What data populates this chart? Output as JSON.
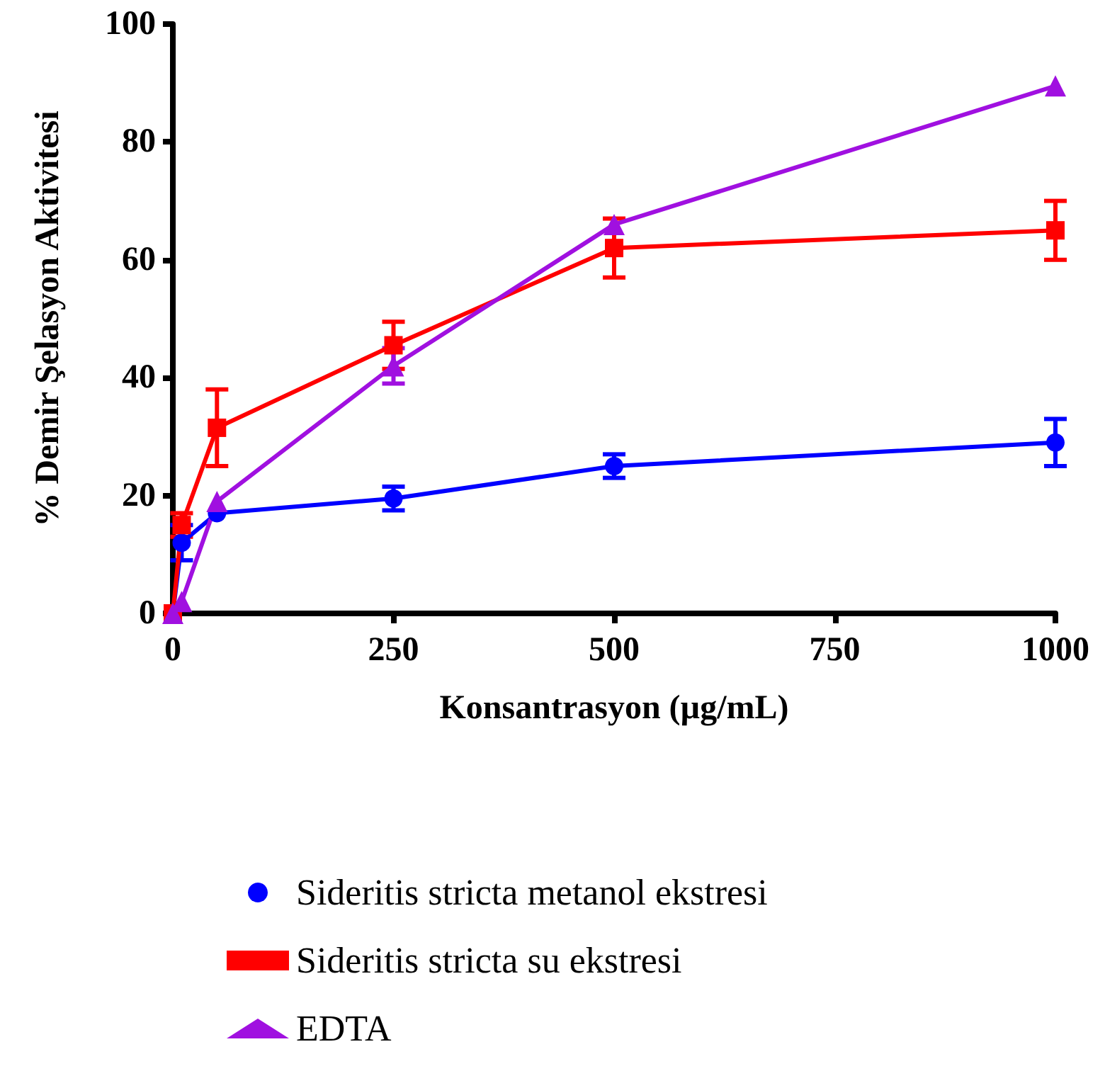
{
  "chart_data": {
    "type": "line",
    "xlabel": "Konsantrasyon (µg/mL)",
    "ylabel": "% Demir Şelasyon Aktivitesi",
    "x": [
      0,
      10,
      50,
      250,
      500,
      1000
    ],
    "series": [
      {
        "name": "Sideritis stricta metanol ekstresi",
        "color": "#0000ff",
        "marker": "circle",
        "values": [
          0,
          12,
          17,
          19.5,
          25,
          29
        ],
        "errors": [
          null,
          3,
          null,
          2,
          2,
          4
        ]
      },
      {
        "name": "Sideritis stricta su ekstresi",
        "color": "#ff0000",
        "marker": "square",
        "values": [
          0,
          15,
          31.5,
          45.5,
          62,
          65
        ],
        "errors": [
          null,
          2,
          6.5,
          4,
          5,
          5
        ]
      },
      {
        "name": "EDTA",
        "color": "#a010e0",
        "marker": "triangle",
        "values": [
          0,
          2,
          19,
          42,
          66,
          89.5
        ],
        "errors": [
          null,
          null,
          null,
          3,
          null,
          null
        ]
      }
    ],
    "xlim": [
      0,
      1000
    ],
    "xticks": [
      0,
      250,
      500,
      750,
      1000
    ],
    "ylim": [
      0,
      100
    ],
    "yticks": [
      0,
      20,
      40,
      60,
      80,
      100
    ],
    "grid": false,
    "legend": "bottom",
    "line_style": "solid"
  }
}
